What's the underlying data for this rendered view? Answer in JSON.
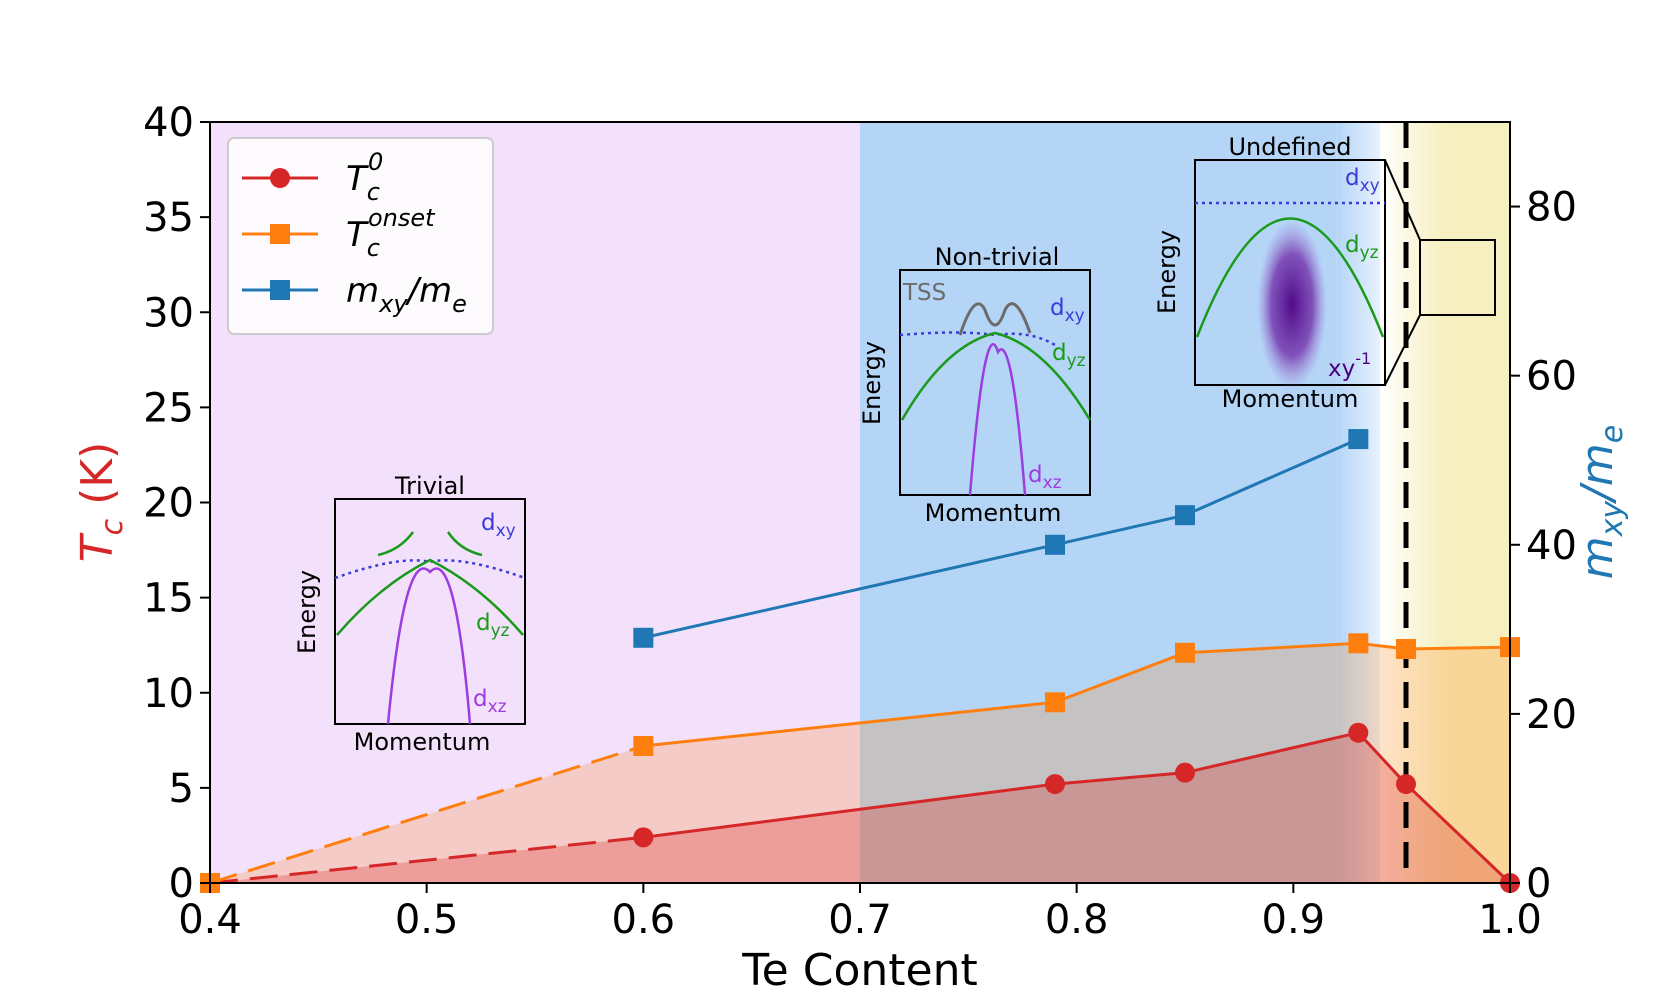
{
  "chart_data": {
    "type": "line",
    "xlabel": "Te Content",
    "ylabel_left": {
      "main": "T",
      "sub": "c",
      "unit": " (K)"
    },
    "ylabel_right": {
      "m": "m",
      "sub": "xy",
      "rest": "/m",
      "sub2": "e"
    },
    "x_range": [
      0.4,
      1.0
    ],
    "y_left_range": [
      0,
      40
    ],
    "y_right_range": [
      0,
      90
    ],
    "x_ticks": [
      "0.4",
      "0.5",
      "0.6",
      "0.7",
      "0.8",
      "0.9",
      "1.0"
    ],
    "y_left_ticks": [
      "0",
      "5",
      "10",
      "15",
      "20",
      "25",
      "30",
      "35",
      "40"
    ],
    "y_right_ticks": [
      "0",
      "20",
      "40",
      "60",
      "80"
    ],
    "legend_placement": "top-left",
    "grid": false,
    "regions": [
      {
        "from": 0.4,
        "to": 0.7,
        "color": "#f3e1fb"
      },
      {
        "from": 0.7,
        "to": 0.92,
        "color": "#b5d5f7"
      },
      {
        "from": 0.95,
        "to": 1.0,
        "color": "#f6efbf"
      }
    ],
    "dashed_boundary_x": 0.952,
    "series": [
      {
        "name_main": "T",
        "name_sub": "c",
        "name_sup": "0",
        "color": "#d62728",
        "marker": "circle",
        "axis": "left",
        "x": [
          0.4,
          0.6,
          0.79,
          0.85,
          0.93,
          0.952,
          1.0
        ],
        "y": [
          0,
          2.4,
          5.2,
          5.8,
          7.9,
          5.2,
          0
        ],
        "dashed_until": 0.6
      },
      {
        "name_main": "T",
        "name_sub": "c",
        "name_sup": "onset",
        "color": "#ff7f0e",
        "marker": "square",
        "axis": "left",
        "x": [
          0.4,
          0.6,
          0.79,
          0.85,
          0.93,
          0.952,
          1.0
        ],
        "y": [
          0,
          7.2,
          9.5,
          12.1,
          12.6,
          12.3,
          12.4
        ],
        "dashed_until": 0.6
      },
      {
        "name_main": "m",
        "name_sub": "xy",
        "name_rest": "/m",
        "name_sub2": "e",
        "color": "#1f77b4",
        "marker": "square",
        "axis": "right",
        "x": [
          0.6,
          0.79,
          0.85,
          0.93
        ],
        "y": [
          29,
          40,
          43.5,
          52.5
        ]
      }
    ]
  },
  "insets": {
    "trivial": {
      "title": "Trivial",
      "xlabel": "Momentum",
      "ylabel": "Energy",
      "bands": [
        "d",
        "xy",
        "d",
        "yz",
        "d",
        "xz"
      ]
    },
    "nontrivial": {
      "title": "Non-trivial",
      "xlabel": "Momentum",
      "ylabel": "Energy",
      "tss": "TSS",
      "bands": [
        "d",
        "xy",
        "d",
        "yz",
        "d",
        "xz"
      ]
    },
    "undefined": {
      "title": "Undefined",
      "xlabel": "Momentum",
      "ylabel": "Energy",
      "bands": [
        "d",
        "xy",
        "d",
        "yz"
      ],
      "xy_label": "xy",
      "xy_exp": "-1"
    }
  },
  "colors": {
    "tc0": "#d62728",
    "tconset": "#ff7f0e",
    "mxy": "#1f77b4",
    "dxy": "#3b3bdb",
    "dyz": "#1a9a1a",
    "dxz": "#9b3de0",
    "tss": "#6b6b6b",
    "xy_inv": "#4b0082"
  }
}
